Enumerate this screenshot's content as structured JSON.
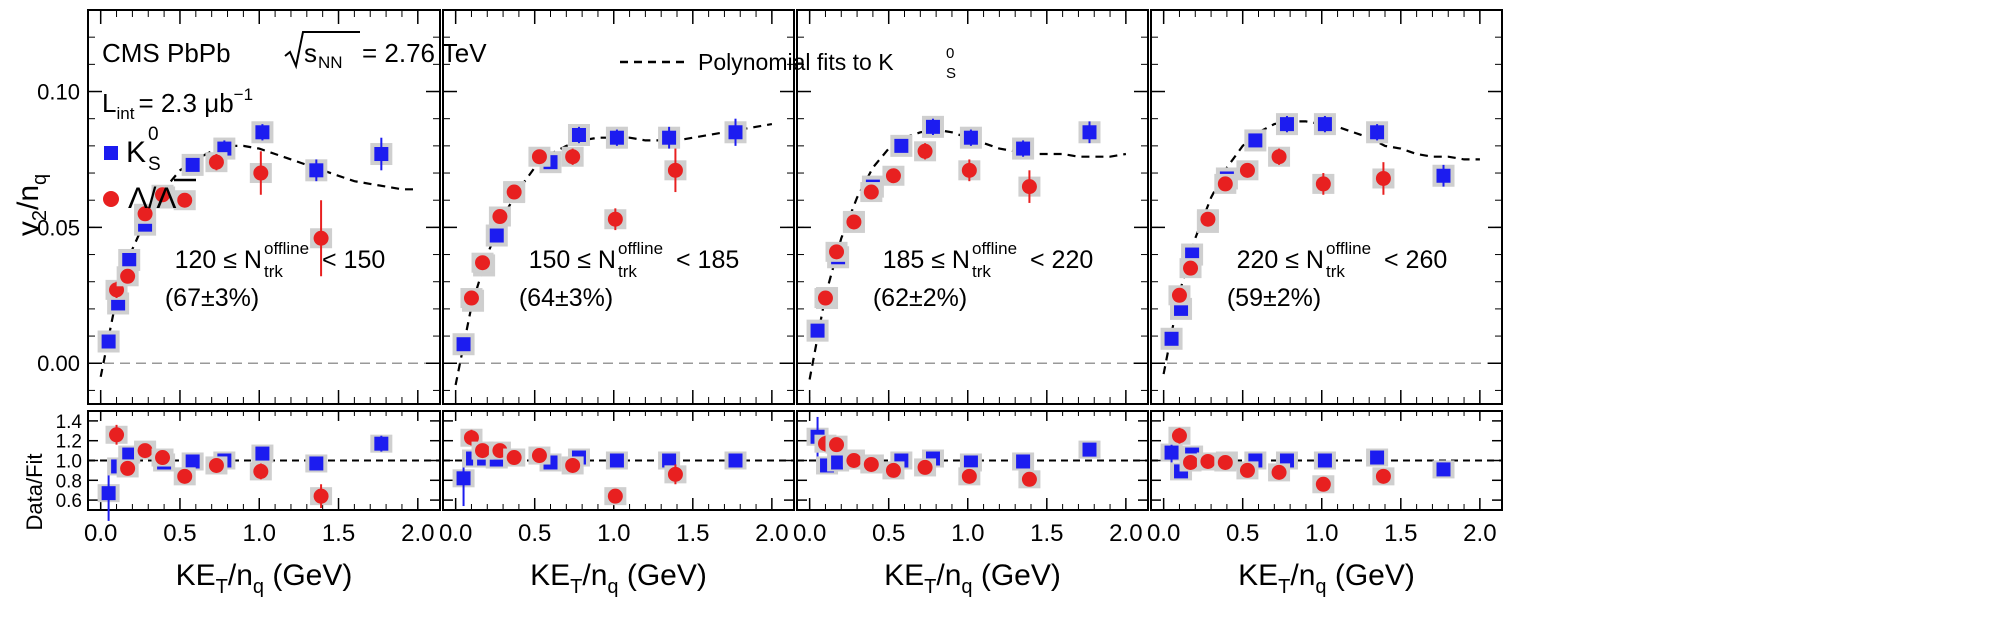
{
  "chart_data": {
    "type": "scatter",
    "experiment": "CMS PbPb",
    "energy_label": "= 2.76 TeV",
    "energy_sqrt": "s",
    "energy_sub": "NN",
    "lumi_label": "L",
    "lumi_sub": "int",
    "lumi_value": "= 2.3 μb",
    "lumi_exp": "−1",
    "fit_legend": "Polynomial fits to K",
    "fit_legend_sub": "S",
    "fit_legend_sup": "0",
    "legend": {
      "ks_main": "K",
      "ks_sub": "S",
      "ks_sup": "0",
      "lambda": "Λ/Λ"
    },
    "ylabel_top": "v",
    "ylabel_top_sub1": "2",
    "ylabel_top_mid": "/n",
    "ylabel_top_sub2": "q",
    "ylabel_bottom": "Data/Fit",
    "xlabel_main": "KE",
    "xlabel_sub1": "T",
    "xlabel_mid": "/n",
    "xlabel_sub2": "q",
    "xlabel_tail": " (GeV)",
    "xlim": [
      -0.08,
      2.14
    ],
    "ylim_top": [
      -0.015,
      0.13
    ],
    "ylim_bottom": [
      0.5,
      1.5
    ],
    "xticks": [
      "0.0",
      "0.5",
      "1.0",
      "1.5",
      "2.0"
    ],
    "yticks_top": [
      "0.00",
      "0.05",
      "0.10"
    ],
    "yticks_bottom": [
      "0.6",
      "0.8",
      "1.0",
      "1.2",
      "1.4"
    ],
    "panels": [
      {
        "mult_prefix": "120 ≤ N",
        "mult_sub": "trk",
        "mult_sup": "offline",
        "mult_suffix": "< 150",
        "centrality": "(67±3%)",
        "fit": [
          [
            0.0,
            -0.005
          ],
          [
            0.1,
            0.024
          ],
          [
            0.2,
            0.042
          ],
          [
            0.3,
            0.055
          ],
          [
            0.4,
            0.064
          ],
          [
            0.5,
            0.071
          ],
          [
            0.6,
            0.075
          ],
          [
            0.7,
            0.078
          ],
          [
            0.8,
            0.08
          ],
          [
            0.9,
            0.08
          ],
          [
            1.0,
            0.079
          ],
          [
            1.1,
            0.077
          ],
          [
            1.2,
            0.075
          ],
          [
            1.3,
            0.073
          ],
          [
            1.4,
            0.071
          ],
          [
            1.5,
            0.069
          ],
          [
            1.6,
            0.067
          ],
          [
            1.7,
            0.066
          ],
          [
            1.8,
            0.065
          ],
          [
            1.9,
            0.064
          ],
          [
            2.0,
            0.064
          ]
        ],
        "ks": [
          [
            0.05,
            0.008,
            0.002
          ],
          [
            0.11,
            0.022,
            0.002
          ],
          [
            0.18,
            0.038,
            0.002
          ],
          [
            0.28,
            0.051,
            0.002
          ],
          [
            0.4,
            0.061,
            0.002
          ],
          [
            0.58,
            0.073,
            0.002
          ],
          [
            0.78,
            0.079,
            0.003
          ],
          [
            1.02,
            0.085,
            0.003
          ],
          [
            1.36,
            0.071,
            0.004
          ],
          [
            1.77,
            0.077,
            0.006
          ]
        ],
        "lam": [
          [
            0.1,
            0.027,
            0.003
          ],
          [
            0.17,
            0.032,
            0.002
          ],
          [
            0.28,
            0.055,
            0.002
          ],
          [
            0.39,
            0.062,
            0.002
          ],
          [
            0.53,
            0.06,
            0.002
          ],
          [
            0.73,
            0.074,
            0.003
          ],
          [
            1.01,
            0.07,
            0.008
          ],
          [
            1.39,
            0.046,
            0.014
          ]
        ],
        "ks_ratio": [
          [
            0.05,
            0.67,
            0.28
          ],
          [
            0.11,
            0.94,
            0.05
          ],
          [
            0.18,
            1.06,
            0.03
          ],
          [
            0.28,
            1.11,
            0.03
          ],
          [
            0.4,
            0.98,
            0.03
          ],
          [
            0.58,
            0.99,
            0.03
          ],
          [
            0.78,
            1.0,
            0.03
          ],
          [
            1.02,
            1.07,
            0.04
          ],
          [
            1.36,
            0.97,
            0.04
          ],
          [
            1.77,
            1.17,
            0.08
          ]
        ],
        "lam_ratio": [
          [
            0.1,
            1.26,
            0.1
          ],
          [
            0.17,
            0.92,
            0.05
          ],
          [
            0.28,
            1.1,
            0.04
          ],
          [
            0.39,
            1.03,
            0.03
          ],
          [
            0.53,
            0.84,
            0.03
          ],
          [
            0.73,
            0.95,
            0.04
          ],
          [
            1.01,
            0.89,
            0.08
          ],
          [
            1.39,
            0.64,
            0.12
          ]
        ]
      },
      {
        "mult_prefix": "150 ≤ N",
        "mult_sub": "trk",
        "mult_sup": "offline",
        "mult_suffix": "< 185",
        "centrality": "(64±3%)",
        "fit": [
          [
            0.0,
            -0.008
          ],
          [
            0.1,
            0.021
          ],
          [
            0.2,
            0.04
          ],
          [
            0.3,
            0.054
          ],
          [
            0.4,
            0.064
          ],
          [
            0.5,
            0.072
          ],
          [
            0.6,
            0.077
          ],
          [
            0.7,
            0.08
          ],
          [
            0.8,
            0.082
          ],
          [
            0.9,
            0.083
          ],
          [
            1.0,
            0.083
          ],
          [
            1.1,
            0.083
          ],
          [
            1.2,
            0.082
          ],
          [
            1.3,
            0.082
          ],
          [
            1.4,
            0.082
          ],
          [
            1.5,
            0.083
          ],
          [
            1.6,
            0.084
          ],
          [
            1.7,
            0.085
          ],
          [
            1.8,
            0.086
          ],
          [
            1.9,
            0.087
          ],
          [
            2.0,
            0.088
          ]
        ],
        "ks": [
          [
            0.05,
            0.007,
            0.002
          ],
          [
            0.11,
            0.023,
            0.002
          ],
          [
            0.18,
            0.036,
            0.002
          ],
          [
            0.26,
            0.047,
            0.002
          ],
          [
            0.37,
            0.063,
            0.002
          ],
          [
            0.6,
            0.074,
            0.002
          ],
          [
            0.78,
            0.084,
            0.003
          ],
          [
            1.02,
            0.083,
            0.003
          ],
          [
            1.35,
            0.083,
            0.004
          ],
          [
            1.77,
            0.085,
            0.005
          ]
        ],
        "lam": [
          [
            0.1,
            0.024,
            0.002
          ],
          [
            0.17,
            0.037,
            0.002
          ],
          [
            0.28,
            0.054,
            0.002
          ],
          [
            0.37,
            0.063,
            0.002
          ],
          [
            0.53,
            0.076,
            0.002
          ],
          [
            0.74,
            0.076,
            0.003
          ],
          [
            1.01,
            0.053,
            0.004
          ],
          [
            1.39,
            0.071,
            0.008
          ]
        ],
        "ks_ratio": [
          [
            0.05,
            0.82,
            0.28
          ],
          [
            0.11,
            1.02,
            0.05
          ],
          [
            0.18,
            1.02,
            0.03
          ],
          [
            0.26,
            1.01,
            0.03
          ],
          [
            0.37,
            1.03,
            0.03
          ],
          [
            0.6,
            0.98,
            0.03
          ],
          [
            0.78,
            1.03,
            0.03
          ],
          [
            1.02,
            1.0,
            0.03
          ],
          [
            1.35,
            1.0,
            0.04
          ],
          [
            1.77,
            1.0,
            0.05
          ]
        ],
        "lam_ratio": [
          [
            0.1,
            1.23,
            0.08
          ],
          [
            0.17,
            1.1,
            0.04
          ],
          [
            0.28,
            1.1,
            0.04
          ],
          [
            0.37,
            1.03,
            0.03
          ],
          [
            0.53,
            1.05,
            0.03
          ],
          [
            0.74,
            0.95,
            0.04
          ],
          [
            1.01,
            0.64,
            0.05
          ],
          [
            1.39,
            0.86,
            0.1
          ]
        ]
      },
      {
        "mult_prefix": "185 ≤ N",
        "mult_sub": "trk",
        "mult_sup": "offline",
        "mult_suffix": "< 220",
        "centrality": "(62±2%)",
        "fit": [
          [
            0.0,
            -0.006
          ],
          [
            0.1,
            0.025
          ],
          [
            0.2,
            0.046
          ],
          [
            0.3,
            0.061
          ],
          [
            0.4,
            0.072
          ],
          [
            0.5,
            0.079
          ],
          [
            0.6,
            0.083
          ],
          [
            0.7,
            0.085
          ],
          [
            0.8,
            0.086
          ],
          [
            0.9,
            0.085
          ],
          [
            1.0,
            0.083
          ],
          [
            1.1,
            0.081
          ],
          [
            1.2,
            0.079
          ],
          [
            1.3,
            0.078
          ],
          [
            1.4,
            0.077
          ],
          [
            1.5,
            0.077
          ],
          [
            1.6,
            0.077
          ],
          [
            1.7,
            0.076
          ],
          [
            1.8,
            0.076
          ],
          [
            1.9,
            0.076
          ],
          [
            2.0,
            0.077
          ]
        ],
        "ks": [
          [
            0.05,
            0.012,
            0.002
          ],
          [
            0.11,
            0.024,
            0.002
          ],
          [
            0.18,
            0.039,
            0.002
          ],
          [
            0.28,
            0.052,
            0.002
          ],
          [
            0.4,
            0.065,
            0.002
          ],
          [
            0.58,
            0.08,
            0.002
          ],
          [
            0.78,
            0.087,
            0.003
          ],
          [
            1.02,
            0.083,
            0.003
          ],
          [
            1.35,
            0.079,
            0.003
          ],
          [
            1.77,
            0.085,
            0.004
          ]
        ],
        "lam": [
          [
            0.1,
            0.024,
            0.002
          ],
          [
            0.17,
            0.041,
            0.002
          ],
          [
            0.28,
            0.052,
            0.002
          ],
          [
            0.39,
            0.063,
            0.002
          ],
          [
            0.53,
            0.069,
            0.002
          ],
          [
            0.73,
            0.078,
            0.003
          ],
          [
            1.01,
            0.071,
            0.004
          ],
          [
            1.39,
            0.065,
            0.006
          ]
        ],
        "ks_ratio": [
          [
            0.05,
            1.24,
            0.2
          ],
          [
            0.11,
            0.95,
            0.04
          ],
          [
            0.18,
            0.98,
            0.03
          ],
          [
            0.28,
            1.02,
            0.03
          ],
          [
            0.4,
            0.97,
            0.03
          ],
          [
            0.58,
            1.0,
            0.03
          ],
          [
            0.78,
            1.02,
            0.03
          ],
          [
            1.02,
            0.98,
            0.03
          ],
          [
            1.35,
            0.99,
            0.03
          ],
          [
            1.77,
            1.11,
            0.05
          ]
        ],
        "lam_ratio": [
          [
            0.1,
            1.17,
            0.08
          ],
          [
            0.17,
            1.16,
            0.04
          ],
          [
            0.28,
            1.0,
            0.03
          ],
          [
            0.39,
            0.96,
            0.03
          ],
          [
            0.53,
            0.9,
            0.03
          ],
          [
            0.73,
            0.93,
            0.03
          ],
          [
            1.01,
            0.84,
            0.04
          ],
          [
            1.39,
            0.81,
            0.07
          ]
        ]
      },
      {
        "mult_prefix": "220 ≤ N",
        "mult_sub": "trk",
        "mult_sup": "offline",
        "mult_suffix": "< 260",
        "centrality": "(59±2%)",
        "fit": [
          [
            0.0,
            -0.004
          ],
          [
            0.1,
            0.026
          ],
          [
            0.2,
            0.046
          ],
          [
            0.3,
            0.061
          ],
          [
            0.4,
            0.072
          ],
          [
            0.5,
            0.08
          ],
          [
            0.6,
            0.085
          ],
          [
            0.7,
            0.088
          ],
          [
            0.8,
            0.089
          ],
          [
            0.9,
            0.089
          ],
          [
            1.0,
            0.088
          ],
          [
            1.1,
            0.087
          ],
          [
            1.2,
            0.085
          ],
          [
            1.3,
            0.083
          ],
          [
            1.4,
            0.08
          ],
          [
            1.5,
            0.079
          ],
          [
            1.6,
            0.077
          ],
          [
            1.7,
            0.076
          ],
          [
            1.8,
            0.076
          ],
          [
            1.9,
            0.075
          ],
          [
            2.0,
            0.075
          ]
        ],
        "ks": [
          [
            0.05,
            0.009,
            0.002
          ],
          [
            0.11,
            0.02,
            0.002
          ],
          [
            0.18,
            0.04,
            0.002
          ],
          [
            0.28,
            0.052,
            0.002
          ],
          [
            0.4,
            0.068,
            0.002
          ],
          [
            0.58,
            0.082,
            0.002
          ],
          [
            0.78,
            0.088,
            0.003
          ],
          [
            1.02,
            0.088,
            0.003
          ],
          [
            1.35,
            0.085,
            0.003
          ],
          [
            1.77,
            0.069,
            0.004
          ]
        ],
        "lam": [
          [
            0.1,
            0.025,
            0.002
          ],
          [
            0.17,
            0.035,
            0.002
          ],
          [
            0.28,
            0.053,
            0.002
          ],
          [
            0.39,
            0.066,
            0.002
          ],
          [
            0.53,
            0.071,
            0.002
          ],
          [
            0.73,
            0.076,
            0.003
          ],
          [
            1.01,
            0.066,
            0.004
          ],
          [
            1.39,
            0.068,
            0.006
          ]
        ],
        "ks_ratio": [
          [
            0.05,
            1.08,
            0.18
          ],
          [
            0.11,
            0.89,
            0.04
          ],
          [
            0.18,
            1.06,
            0.03
          ],
          [
            0.28,
            0.99,
            0.03
          ],
          [
            0.4,
            1.0,
            0.03
          ],
          [
            0.58,
            1.0,
            0.03
          ],
          [
            0.78,
            1.0,
            0.03
          ],
          [
            1.02,
            1.0,
            0.03
          ],
          [
            1.35,
            1.03,
            0.03
          ],
          [
            1.77,
            0.91,
            0.05
          ]
        ],
        "lam_ratio": [
          [
            0.1,
            1.25,
            0.08
          ],
          [
            0.17,
            0.98,
            0.04
          ],
          [
            0.28,
            0.99,
            0.03
          ],
          [
            0.39,
            0.98,
            0.03
          ],
          [
            0.53,
            0.9,
            0.03
          ],
          [
            0.73,
            0.88,
            0.03
          ],
          [
            1.01,
            0.76,
            0.04
          ],
          [
            1.39,
            0.84,
            0.06
          ]
        ]
      }
    ]
  }
}
